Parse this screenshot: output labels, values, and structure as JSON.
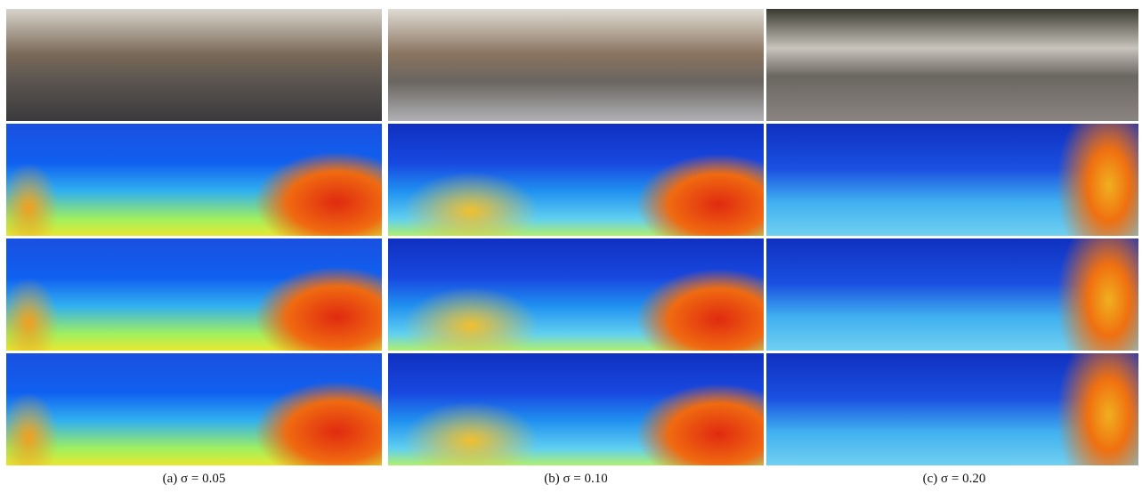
{
  "captions": [
    "(a) σ = 0.05",
    "(b) σ = 0.10",
    "(c) σ = 0.20"
  ]
}
